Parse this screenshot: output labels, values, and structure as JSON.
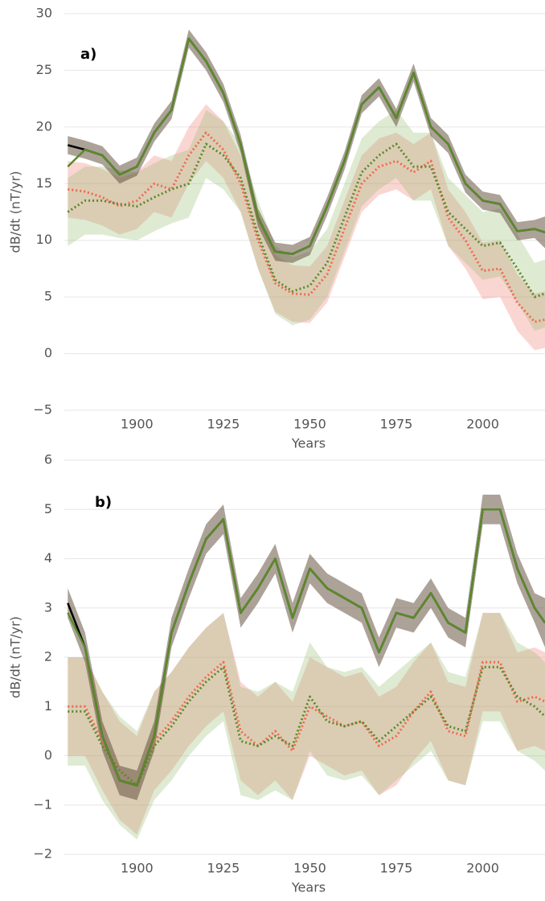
{
  "chart_data": [
    {
      "type": "line",
      "annotation": "a)",
      "xlabel": "Years",
      "ylabel": "dB/dt (nT/yr)",
      "x": [
        1880,
        1885,
        1890,
        1895,
        1900,
        1905,
        1910,
        1915,
        1920,
        1925,
        1930,
        1935,
        1940,
        1945,
        1950,
        1955,
        1960,
        1965,
        1970,
        1975,
        1980,
        1985,
        1990,
        1995,
        2000,
        2005,
        2010,
        2015,
        2018
      ],
      "xlim": [
        1879,
        2018
      ],
      "xticks": [
        1900,
        1925,
        1950,
        1975,
        2000
      ],
      "ylim": [
        -5,
        30
      ],
      "yticks": [
        {
          "value": -5,
          "label": "−5"
        },
        0,
        5,
        10,
        15,
        20,
        25,
        30
      ],
      "grid": true,
      "bands": [
        {
          "color": "rgba(240,120,110,0.3)",
          "lower": [
            12,
            11.8,
            11.3,
            10.5,
            11,
            12.5,
            12,
            15,
            17,
            15.5,
            12.5,
            7.5,
            3.7,
            2.8,
            2.7,
            4.5,
            8.5,
            12.5,
            14,
            14.5,
            13.5,
            14.5,
            9.5,
            7.5,
            4.8,
            5,
            2,
            0.3,
            0.5
          ],
          "upper": [
            17,
            16.8,
            16.3,
            15.5,
            16,
            17.5,
            17,
            20,
            22,
            20.5,
            17.5,
            12.5,
            8.7,
            7.8,
            7.7,
            9.5,
            13.5,
            17.5,
            19,
            19.5,
            18.5,
            19.5,
            14.5,
            12.5,
            9.8,
            10,
            7,
            5.3,
            5.5
          ]
        },
        {
          "color": "rgba(150,185,110,0.3)",
          "lower": [
            9.5,
            10.5,
            10.5,
            10.2,
            10,
            10.8,
            11.5,
            12,
            15.5,
            14.5,
            12.5,
            7.5,
            3.5,
            2.5,
            3,
            5,
            9,
            13,
            14.5,
            15.5,
            13.5,
            13.5,
            9.5,
            8,
            6.5,
            6.8,
            4.5,
            2,
            2.3
          ],
          "upper": [
            15.5,
            16.5,
            16.5,
            16.2,
            16,
            16.8,
            17.5,
            18,
            21.5,
            20.5,
            18.5,
            13.5,
            9.5,
            8.5,
            9,
            11,
            15,
            19,
            20.5,
            21.5,
            19.5,
            19.5,
            15.5,
            14,
            12.5,
            12.8,
            10.5,
            8,
            8.3
          ]
        },
        {
          "color": "rgba(90,70,50,0.5)",
          "lower": [
            17.6,
            17.2,
            16.7,
            15,
            15.7,
            18.7,
            20.7,
            27,
            25,
            22.2,
            17.7,
            11.2,
            8.2,
            8,
            8.7,
            12.2,
            16.2,
            21.2,
            22.7,
            20,
            24,
            19.2,
            17.7,
            14.2,
            12.7,
            12.4,
            10,
            10.2,
            9.3
          ],
          "upper": [
            19.2,
            18.8,
            18.3,
            16.6,
            17.3,
            20.3,
            22.3,
            28.6,
            26.6,
            23.8,
            19.3,
            12.8,
            9.8,
            9.6,
            10.3,
            13.8,
            17.8,
            22.8,
            24.3,
            21.6,
            25.6,
            20.8,
            19.3,
            15.8,
            14.3,
            14,
            11.6,
            11.8,
            12.1
          ]
        }
      ],
      "series": [
        {
          "color": "#f06a50",
          "style": "dotted",
          "values": [
            14.5,
            14.3,
            13.8,
            13,
            13.5,
            15,
            14.5,
            17.5,
            19.5,
            18,
            15,
            10,
            6.2,
            5.3,
            5.2,
            7,
            11,
            15,
            16.5,
            17,
            16,
            17,
            12,
            10,
            7.3,
            7.5,
            4.5,
            2.8,
            3
          ]
        },
        {
          "color": "#5b8a2a",
          "style": "dotted",
          "values": [
            12.5,
            13.5,
            13.5,
            13.2,
            13,
            13.8,
            14.5,
            15,
            18.5,
            17.5,
            15.5,
            10.5,
            6.5,
            5.5,
            6,
            8,
            12,
            16,
            17.5,
            18.5,
            16.5,
            16.5,
            12.5,
            11,
            9.5,
            9.8,
            7.5,
            5,
            5.3
          ]
        },
        {
          "color": "#000000",
          "style": "solid",
          "values": [
            18.4,
            18,
            17.5,
            15.8,
            16.5,
            19.5,
            21.5,
            27.8,
            25.8,
            23,
            18.5,
            12,
            9,
            8.8,
            9.5,
            13,
            17,
            22,
            23.5,
            20.8,
            24.8,
            20,
            18.5,
            15,
            13.5,
            13.2,
            10.8,
            11,
            10.7
          ]
        },
        {
          "color": "#5b8a2a",
          "style": "solid",
          "values": [
            16.5,
            18,
            17.5,
            15.8,
            16.5,
            19.5,
            21.5,
            27.8,
            25.8,
            23,
            18.5,
            12,
            9,
            8.8,
            9.5,
            13,
            17,
            22,
            23.5,
            20.8,
            24.8,
            20,
            18.5,
            15,
            13.5,
            13.2,
            10.8,
            11,
            10.7
          ]
        }
      ]
    },
    {
      "type": "line",
      "annotation": "b)",
      "xlabel": "Years",
      "ylabel": "dB/dt (nT/yr)",
      "x": [
        1880,
        1885,
        1890,
        1895,
        1900,
        1905,
        1910,
        1915,
        1920,
        1925,
        1930,
        1935,
        1940,
        1945,
        1950,
        1955,
        1960,
        1965,
        1970,
        1975,
        1980,
        1985,
        1990,
        1995,
        2000,
        2005,
        2010,
        2015,
        2018
      ],
      "xlim": [
        1879,
        2018
      ],
      "xticks": [
        1900,
        1925,
        1950,
        1975,
        2000
      ],
      "ylim": [
        -2,
        6
      ],
      "yticks": [
        {
          "value": -2,
          "label": "−2"
        },
        {
          "value": -1,
          "label": "−1"
        },
        0,
        1,
        2,
        3,
        4,
        5,
        6
      ],
      "grid": true,
      "bands": [
        {
          "color": "rgba(240,120,110,0.3)",
          "lower": [
            0,
            0,
            -0.7,
            -1.3,
            -1.6,
            -0.7,
            -0.3,
            0.2,
            0.6,
            0.9,
            -0.5,
            -0.8,
            -0.5,
            -0.9,
            0,
            -0.2,
            -0.4,
            -0.3,
            -0.8,
            -0.6,
            -0.1,
            0.3,
            -0.5,
            -0.6,
            0.9,
            0.9,
            0.1,
            0.2,
            0.1
          ],
          "upper": [
            2,
            2,
            1.3,
            0.7,
            0.4,
            1.3,
            1.7,
            2.2,
            2.6,
            2.9,
            1.5,
            1.2,
            1.5,
            1.1,
            2,
            1.8,
            1.6,
            1.7,
            1.2,
            1.4,
            1.9,
            2.3,
            1.5,
            1.4,
            2.9,
            2.9,
            2.1,
            2.2,
            2.1
          ]
        },
        {
          "color": "rgba(150,185,110,0.3)",
          "lower": [
            -0.2,
            -0.2,
            -0.9,
            -1.4,
            -1.7,
            -0.9,
            -0.5,
            0,
            0.4,
            0.7,
            -0.8,
            -0.9,
            -0.7,
            -0.9,
            0.1,
            -0.4,
            -0.5,
            -0.4,
            -0.8,
            -0.5,
            -0.2,
            0.1,
            -0.5,
            -0.6,
            0.7,
            0.7,
            0.1,
            -0.1,
            -0.3
          ],
          "upper": [
            2,
            2,
            1.3,
            0.8,
            0.5,
            1.3,
            1.7,
            2.2,
            2.6,
            2.9,
            1.4,
            1.3,
            1.5,
            1.3,
            2.3,
            1.8,
            1.7,
            1.8,
            1.4,
            1.7,
            2,
            2.3,
            1.7,
            1.6,
            2.9,
            2.9,
            2.3,
            2.1,
            1.9
          ]
        },
        {
          "color": "rgba(90,70,50,0.5)",
          "lower": [
            2.8,
            1.9,
            0.1,
            -0.8,
            -0.9,
            0.1,
            2.2,
            3.2,
            4.1,
            4.5,
            2.6,
            3.1,
            3.7,
            2.5,
            3.5,
            3.1,
            2.9,
            2.7,
            1.8,
            2.6,
            2.5,
            3,
            2.4,
            2.2,
            4.7,
            4.7,
            3.5,
            2.7,
            2.2
          ],
          "upper": [
            3.4,
            2.5,
            0.7,
            -0.2,
            -0.3,
            0.7,
            2.8,
            3.8,
            4.7,
            5.1,
            3.2,
            3.7,
            4.3,
            3.1,
            4.1,
            3.7,
            3.5,
            3.3,
            2.4,
            3.2,
            3.1,
            3.6,
            3,
            2.8,
            5.3,
            5.3,
            4.1,
            3.3,
            3.2
          ]
        }
      ],
      "series": [
        {
          "color": "#f06a50",
          "style": "dotted",
          "values": [
            1,
            1,
            0.3,
            -0.3,
            -0.6,
            0.3,
            0.7,
            1.2,
            1.6,
            1.9,
            0.5,
            0.2,
            0.5,
            0.1,
            1,
            0.8,
            0.6,
            0.7,
            0.2,
            0.4,
            0.9,
            1.3,
            0.5,
            0.4,
            1.9,
            1.9,
            1.1,
            1.2,
            1.1
          ]
        },
        {
          "color": "#5b8a2a",
          "style": "dotted",
          "values": [
            0.9,
            0.9,
            0.2,
            -0.3,
            -0.6,
            0.2,
            0.6,
            1.1,
            1.5,
            1.8,
            0.3,
            0.2,
            0.4,
            0.2,
            1.2,
            0.7,
            0.6,
            0.7,
            0.3,
            0.6,
            0.9,
            1.2,
            0.6,
            0.5,
            1.8,
            1.8,
            1.2,
            1,
            0.8
          ]
        },
        {
          "color": "#000000",
          "style": "solid",
          "values": [
            3.1,
            2.2,
            0.4,
            -0.5,
            -0.6,
            0.4,
            2.5,
            3.5,
            4.4,
            4.8,
            2.9,
            3.4,
            4,
            2.8,
            3.8,
            3.4,
            3.2,
            3,
            2.1,
            2.9,
            2.8,
            3.3,
            2.7,
            2.5,
            5,
            5,
            3.8,
            3,
            2.7
          ]
        },
        {
          "color": "#5b8a2a",
          "style": "solid",
          "values": [
            2.9,
            2.2,
            0.4,
            -0.5,
            -0.6,
            0.4,
            2.5,
            3.5,
            4.4,
            4.8,
            2.9,
            3.4,
            4,
            2.8,
            3.8,
            3.4,
            3.2,
            3,
            2.1,
            2.9,
            2.8,
            3.3,
            2.7,
            2.5,
            5,
            5,
            3.8,
            3,
            2.7
          ]
        }
      ]
    }
  ]
}
